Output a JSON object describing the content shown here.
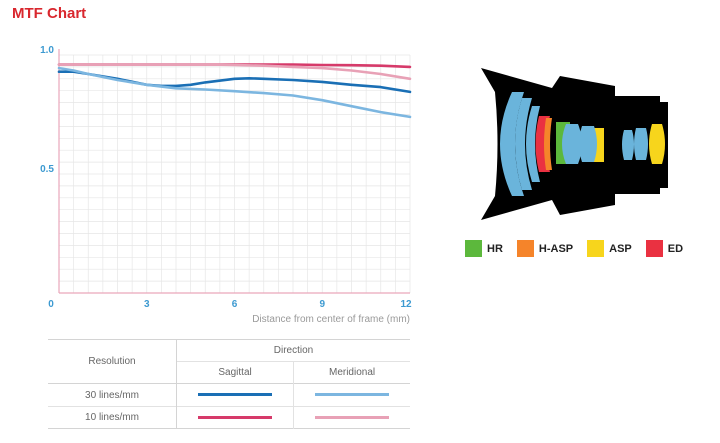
{
  "title": "MTF Chart",
  "chart_data": {
    "type": "line",
    "xlabel": "Distance from center of frame (mm)",
    "x_ticks": [
      "0",
      "3",
      "6",
      "9",
      "12"
    ],
    "y_ticks": [
      "1.0",
      "0.5"
    ],
    "xlim": [
      0,
      12
    ],
    "ylim": [
      0,
      1.0
    ],
    "series": [
      {
        "key": "s10",
        "color": "#d63a6a",
        "x": [
          0,
          1,
          2,
          3,
          4,
          5,
          6,
          7,
          8,
          9,
          10,
          11,
          12
        ],
        "y": [
          0.96,
          0.96,
          0.96,
          0.96,
          0.96,
          0.96,
          0.96,
          0.96,
          0.96,
          0.958,
          0.957,
          0.955,
          0.95
        ]
      },
      {
        "key": "m10",
        "color": "#e8a1b6",
        "x": [
          0,
          1,
          2,
          3,
          4,
          5,
          6,
          7,
          8,
          9,
          10,
          11,
          12
        ],
        "y": [
          0.96,
          0.96,
          0.96,
          0.96,
          0.96,
          0.96,
          0.958,
          0.955,
          0.95,
          0.945,
          0.935,
          0.92,
          0.9
        ]
      },
      {
        "key": "s30",
        "color": "#1a6fb5",
        "x": [
          0,
          0.5,
          1,
          2,
          3,
          3.5,
          4,
          4.5,
          5,
          6,
          6.5,
          7,
          8,
          9,
          10,
          11,
          12
        ],
        "y": [
          0.93,
          0.93,
          0.92,
          0.9,
          0.875,
          0.87,
          0.87,
          0.875,
          0.885,
          0.9,
          0.902,
          0.9,
          0.895,
          0.887,
          0.875,
          0.865,
          0.845
        ]
      },
      {
        "key": "m30",
        "color": "#7cb6e0",
        "x": [
          0,
          0.5,
          1,
          2,
          3,
          4,
          5,
          6,
          7,
          8,
          9,
          10,
          11,
          12
        ],
        "y": [
          0.945,
          0.935,
          0.92,
          0.895,
          0.875,
          0.86,
          0.855,
          0.848,
          0.84,
          0.83,
          0.81,
          0.785,
          0.76,
          0.74
        ]
      }
    ]
  },
  "lens_legend": [
    {
      "label": "HR",
      "color": "#5cb83c"
    },
    {
      "label": "H-ASP",
      "color": "#f5842a"
    },
    {
      "label": "ASP",
      "color": "#f7d51c"
    },
    {
      "label": "ED",
      "color": "#ea3141"
    }
  ],
  "table": {
    "resolution_header": "Resolution",
    "direction_header": "Direction",
    "sagittal": "Sagittal",
    "meridional": "Meridional",
    "rows": [
      {
        "label": "30 lines/mm",
        "sag_color": "#1a6fb5",
        "mer_color": "#7cb6e0"
      },
      {
        "label": "10 lines/mm",
        "sag_color": "#d63a6a",
        "mer_color": "#e8a1b6"
      }
    ]
  }
}
